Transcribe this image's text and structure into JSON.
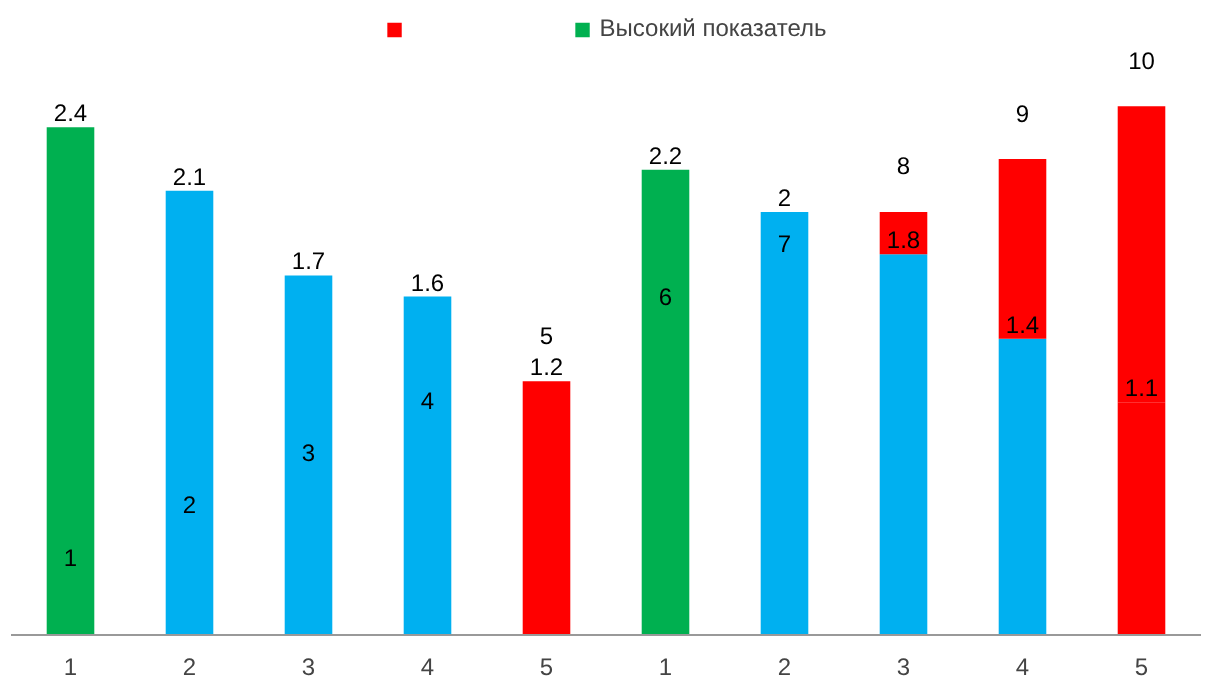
{
  "chart_data": {
    "type": "bar",
    "stacked": true,
    "legend": "top",
    "tick_labels": "x",
    "categories": [
      "1",
      "2",
      "3",
      "4",
      "5",
      "1",
      "2",
      "3",
      "4",
      "5"
    ],
    "series": [
      {
        "name": "Высокий показатель",
        "colors": [
          "#00b050",
          "#00b0f0",
          "#00b0f0",
          "#00b0f0",
          "#ff0000",
          "#00b050",
          "#00b0f0",
          "#00b0f0",
          "#00b0f0",
          "#ff0000"
        ],
        "values": [
          2.4,
          2.1,
          1.7,
          1.6,
          1.2,
          2.2,
          2,
          1.8,
          1.4,
          1.1
        ],
        "value_labels": [
          "2.4",
          "2.1",
          "1.7",
          "1.6",
          "1.2",
          "2.2",
          "2",
          "1.8",
          "1.4",
          "1.1"
        ]
      },
      {
        "color": "#ff0000",
        "values": [
          null,
          null,
          null,
          null,
          null,
          null,
          null,
          0.2,
          0.85,
          1.4
        ]
      }
    ],
    "annotations": [
      "1",
      "2",
      "3",
      "4",
      "5",
      "6",
      "7",
      "8",
      "9",
      "10"
    ]
  }
}
